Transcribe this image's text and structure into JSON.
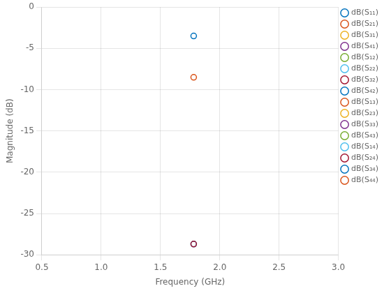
{
  "chart_data": {
    "type": "line",
    "xlabel": "Frequency (GHz)",
    "ylabel": "Magnitude (dB)",
    "xlim": [
      0.5,
      3.0
    ],
    "ylim": [
      -30,
      0
    ],
    "xticks": [
      0.5,
      {
        "value": 1,
        "label": "1.0"
      },
      1.5,
      {
        "value": 2,
        "label": "2.0"
      },
      2.5,
      {
        "value": 3,
        "label": "3.0"
      }
    ],
    "yticks": [
      0,
      -5,
      -10,
      -15,
      -20,
      -25,
      -30
    ],
    "grid": true,
    "legend": "right",
    "marker": "circle",
    "line_style": "solid",
    "series": [
      {
        "name": "dB(S₁₁)",
        "color": "#0072BD",
        "x": [
          1.78
        ],
        "values": [
          -3.5
        ]
      },
      {
        "name": "dB(S₂₁)",
        "color": "#D95319",
        "x": [
          1.78
        ],
        "values": [
          -8.5
        ]
      },
      {
        "name": "dB(S₃₁)",
        "color": "#EDB120",
        "x": [],
        "values": []
      },
      {
        "name": "dB(S₄₁)",
        "color": "#7E2F8E",
        "x": [],
        "values": []
      },
      {
        "name": "dB(S₁₂)",
        "color": "#77AC30",
        "x": [],
        "values": []
      },
      {
        "name": "dB(S₂₂)",
        "color": "#4DBEEE",
        "x": [],
        "values": []
      },
      {
        "name": "dB(S₃₂)",
        "color": "#A2142F",
        "x": [],
        "values": []
      },
      {
        "name": "dB(S₄₂)",
        "color": "#0072BD",
        "x": [],
        "values": []
      },
      {
        "name": "dB(S₁₃)",
        "color": "#D95319",
        "x": [],
        "values": []
      },
      {
        "name": "dB(S₂₃)",
        "color": "#EDB120",
        "x": [],
        "values": []
      },
      {
        "name": "dB(S₃₃)",
        "color": "#7E2F8E",
        "x": [],
        "values": []
      },
      {
        "name": "dB(S₄₃)",
        "color": "#77AC30",
        "x": [],
        "values": []
      },
      {
        "name": "dB(S₁₄)",
        "color": "#4DBEEE",
        "x": [],
        "values": []
      },
      {
        "name": "dB(S₂₄)",
        "color": "#A2142F",
        "x": [
          1.78
        ],
        "values": [
          -28.7
        ]
      },
      {
        "name": "dB(S₃₄)",
        "color": "#0072BD",
        "x": [
          1.78
        ],
        "values": [
          -28.7
        ]
      },
      {
        "name": "dB(S₄₄)",
        "color": "#D95319",
        "x": [],
        "values": []
      }
    ]
  }
}
